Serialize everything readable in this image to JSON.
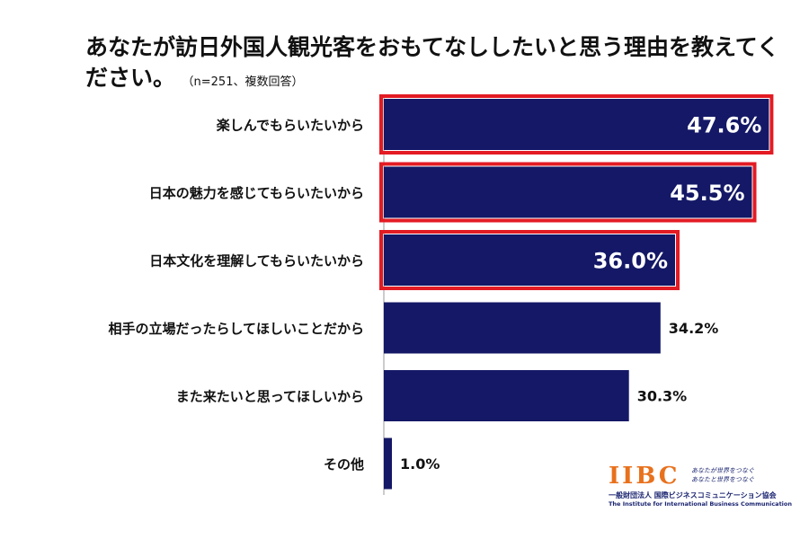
{
  "title": {
    "main": "あなたが訪日外国人観光客をおもてなししたいと思う理由を教えてください。",
    "note": "（n=251、複数回答）"
  },
  "colors": {
    "bar": "#141866",
    "highlight": "#e31b23",
    "label_inside": "#ffffff",
    "label_outside": "#111111"
  },
  "chart_data": {
    "type": "bar",
    "orientation": "horizontal",
    "categories": [
      "楽しんでもらいたいから",
      "日本の魅力を感じてもらいたいから",
      "日本文化を理解してもらいたいから",
      "相手の立場だったらしてほしいことだから",
      "また来たいと思ってほしいから",
      "その他"
    ],
    "values": [
      47.6,
      45.5,
      36.0,
      34.2,
      30.3,
      1.0
    ],
    "value_labels": [
      "47.6%",
      "45.5%",
      "36.0%",
      "34.2%",
      "30.3%",
      "1.0%"
    ],
    "highlighted": [
      true,
      true,
      true,
      false,
      false,
      false
    ],
    "xlim": [
      0,
      50
    ],
    "grid": false,
    "legend": "none"
  },
  "logo": {
    "mark": "IIBC",
    "tagline_1": "あなたが世界をつなぐ",
    "tagline_2": "あなたと世界をつなぐ",
    "org_ja": "一般財団法人 国際ビジネスコミュニケーション協会",
    "org_en": "The Institute for International Business Communication"
  }
}
